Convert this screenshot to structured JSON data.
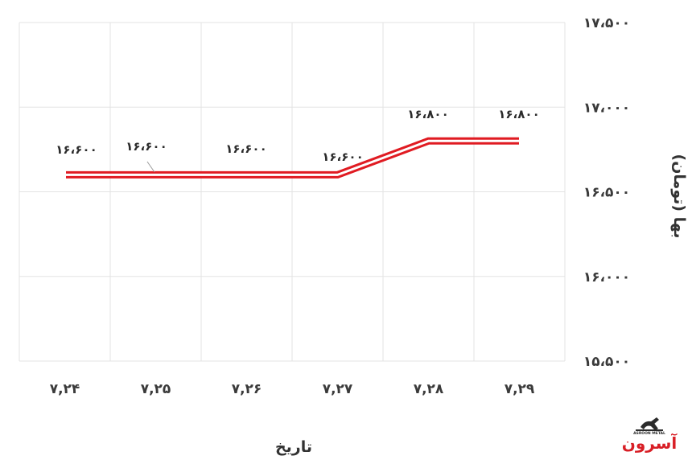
{
  "chart_data": {
    "type": "line",
    "categories": [
      "۷,۲۴",
      "۷,۲۵",
      "۷,۲۶",
      "۷,۲۷",
      "۷,۲۸",
      "۷,۲۹"
    ],
    "values": [
      16600,
      16600,
      16600,
      16600,
      16800,
      16800
    ],
    "data_labels": [
      "۱۶،۶۰۰",
      "۱۶،۶۰۰",
      "۱۶،۶۰۰",
      "۱۶،۶۰۰",
      "۱۶،۸۰۰",
      "۱۶،۸۰۰"
    ],
    "xlabel": "تاریخ",
    "ylabel": "بها (تومان)",
    "ylim": [
      15500,
      17500
    ],
    "yticks": [
      15500,
      16000,
      16500,
      17000,
      17500
    ],
    "ytick_labels": [
      "۱۵،۵۰۰",
      "۱۶،۰۰۰",
      "۱۶،۵۰۰",
      "۱۷،۰۰۰",
      "۱۷،۵۰۰"
    ],
    "y_axis_position": "right",
    "grid": true,
    "line_color": "#e01b22",
    "line_style": "double"
  },
  "logo": {
    "name": "Asroon Metal",
    "text_fa": "آسرون",
    "text_en": "ASROON METAL",
    "color": "#d81f26"
  }
}
